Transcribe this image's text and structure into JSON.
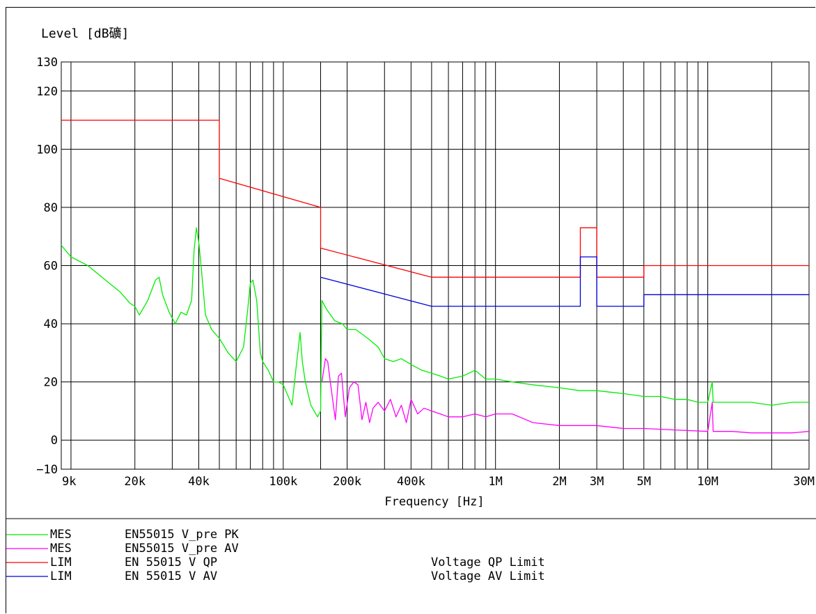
{
  "chart_data": {
    "type": "line",
    "ylabel": "Level [dB礦]",
    "xlabel": "Frequency [Hz]",
    "x_scale": "log",
    "xlim": [
      9000,
      30000000
    ],
    "ylim": [
      -10,
      130
    ],
    "grid": true,
    "y_ticks": [
      {
        "value": 130,
        "label": "130"
      },
      {
        "value": 120,
        "label": "120"
      },
      {
        "value": 100,
        "label": "100"
      },
      {
        "value": 80,
        "label": "80"
      },
      {
        "value": 60,
        "label": "60"
      },
      {
        "value": 40,
        "label": "40"
      },
      {
        "value": 20,
        "label": "20"
      },
      {
        "value": 0,
        "label": "0"
      },
      {
        "value": -10,
        "label": "−10"
      }
    ],
    "x_ticks": [
      {
        "value": 9000,
        "label": "9k"
      },
      {
        "value": 20000,
        "label": "20k"
      },
      {
        "value": 40000,
        "label": "40k"
      },
      {
        "value": 100000,
        "label": "100k"
      },
      {
        "value": 200000,
        "label": "200k"
      },
      {
        "value": 400000,
        "label": "400k"
      },
      {
        "value": 1000000,
        "label": "1M"
      },
      {
        "value": 2000000,
        "label": "2M"
      },
      {
        "value": 3000000,
        "label": "3M"
      },
      {
        "value": 5000000,
        "label": "5M"
      },
      {
        "value": 10000000,
        "label": "10M"
      },
      {
        "value": 30000000,
        "label": "30M"
      }
    ],
    "x_gridlines": [
      9000,
      10000,
      20000,
      30000,
      40000,
      50000,
      60000,
      70000,
      80000,
      90000,
      100000,
      150000,
      200000,
      300000,
      400000,
      500000,
      600000,
      700000,
      800000,
      900000,
      1000000,
      2000000,
      3000000,
      4000000,
      5000000,
      6000000,
      7000000,
      8000000,
      9000000,
      10000000,
      20000000,
      30000000
    ],
    "series": [
      {
        "name": "EN55015 V_pre PK",
        "color": "#00ee00",
        "x": [
          9000,
          10000,
          12000,
          14000,
          17000,
          19000,
          20000,
          21000,
          23000,
          25000,
          26000,
          27000,
          29000,
          31000,
          33000,
          35000,
          37000,
          38000,
          39000,
          40000,
          41000,
          43000,
          46000,
          50000,
          55000,
          60000,
          65000,
          68000,
          70000,
          72000,
          75000,
          78000,
          80000,
          85000,
          90000,
          95000,
          100000,
          110000,
          115000,
          120000,
          123000,
          127000,
          135000,
          145000,
          150000,
          152000,
          160000,
          175000,
          190000,
          200000,
          220000,
          250000,
          280000,
          300000,
          330000,
          360000,
          400000,
          450000,
          500000,
          550000,
          600000,
          700000,
          800000,
          900000,
          1000000,
          1200000,
          1500000,
          2000000,
          2500000,
          3000000,
          4000000,
          5000000,
          6000000,
          7000000,
          8000000,
          9000000,
          10000000,
          10500000,
          10600000,
          11000000,
          13000000,
          16000000,
          20000000,
          25000000,
          30000000
        ],
        "y": [
          67,
          63,
          60,
          56,
          51,
          47,
          46,
          43,
          48,
          55,
          56,
          50,
          44,
          40,
          44,
          43,
          48,
          65,
          73,
          68,
          60,
          43,
          38,
          35,
          30,
          27,
          32,
          45,
          54,
          55,
          48,
          30,
          27,
          24,
          20,
          20,
          19,
          12,
          25,
          37,
          27,
          20,
          12,
          8,
          10,
          48,
          45,
          41,
          40,
          38,
          38,
          35,
          32,
          28,
          27,
          28,
          26,
          24,
          23,
          22,
          21,
          22,
          24,
          21,
          21,
          20,
          19,
          18,
          17,
          17,
          16,
          15,
          15,
          14,
          14,
          13,
          13,
          20,
          13,
          13,
          13,
          13,
          12,
          13,
          13
        ]
      },
      {
        "name": "EN55015 V_pre AV",
        "color": "#ff00ff",
        "x": [
          152000,
          158000,
          162000,
          168000,
          176000,
          182000,
          188000,
          196000,
          205000,
          215000,
          225000,
          235000,
          245000,
          255000,
          265000,
          280000,
          300000,
          320000,
          340000,
          360000,
          380000,
          400000,
          430000,
          460000,
          500000,
          550000,
          600000,
          700000,
          800000,
          900000,
          1000000,
          1200000,
          1500000,
          2000000,
          2500000,
          3000000,
          4000000,
          5000000,
          7000000,
          10000000,
          10500000,
          10600000,
          11000000,
          13000000,
          16000000,
          20000000,
          25000000,
          30000000
        ],
        "y": [
          20,
          28,
          27,
          18,
          7,
          22,
          23,
          8,
          18,
          20,
          19,
          7,
          13,
          6,
          11,
          13,
          10,
          14,
          8,
          12,
          6,
          14,
          9,
          11,
          10,
          9,
          8,
          8,
          9,
          8,
          9,
          9,
          6,
          5,
          5,
          5,
          4,
          4,
          3.5,
          3,
          13,
          3,
          3,
          3,
          2.5,
          2.5,
          2.5,
          3
        ]
      },
      {
        "name": "EN 55015 V QP",
        "color": "#ff0000",
        "x": [
          9000,
          50000,
          50000,
          150000,
          150000,
          500000,
          2510000,
          2510000,
          3000000,
          3000000,
          5000000,
          5000000,
          30000000
        ],
        "y": [
          110,
          110,
          90,
          80,
          66,
          56,
          56,
          73,
          73,
          56,
          56,
          60,
          60
        ]
      },
      {
        "name": "EN 55015 V AV",
        "color": "#0000dd",
        "x": [
          150000,
          500000,
          2510000,
          2510000,
          3000000,
          3000000,
          5000000,
          5000000,
          30000000
        ],
        "y": [
          56,
          46,
          46,
          63,
          63,
          46,
          46,
          50,
          50
        ]
      }
    ],
    "legend": [
      {
        "type": "MES",
        "name": "EN55015 V_pre PK",
        "description": "",
        "color": "#00ee00"
      },
      {
        "type": "MES",
        "name": "EN55015 V_pre AV",
        "description": "",
        "color": "#ff00ff"
      },
      {
        "type": "LIM",
        "name": "EN 55015 V QP",
        "description": "Voltage QP Limit",
        "color": "#ff0000"
      },
      {
        "type": "LIM",
        "name": "EN 55015 V AV",
        "description": "Voltage AV Limit",
        "color": "#0000dd"
      }
    ]
  }
}
